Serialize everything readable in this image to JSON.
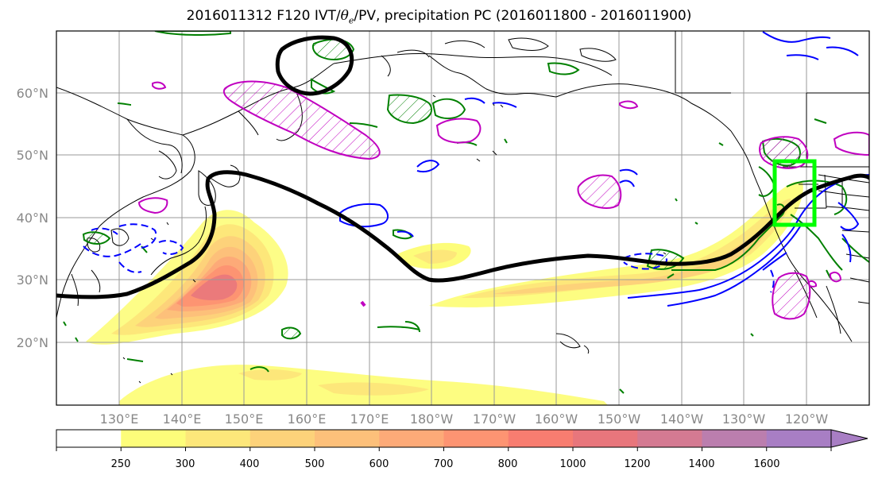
{
  "title": {
    "prefix": "2016011312 F120 IVT/",
    "theta_symbol": "θ",
    "theta_sub": "e",
    "suffix": "/PV, precipitation PC (2016011800 - 2016011900)"
  },
  "map": {
    "lat_labels": [
      "60°N",
      "50°N",
      "40°N",
      "30°N",
      "20°N"
    ],
    "lon_labels": [
      "130°E",
      "140°E",
      "150°E",
      "160°E",
      "170°E",
      "180°W",
      "170°W",
      "160°W",
      "150°W",
      "140°W",
      "130°W",
      "120°W"
    ]
  },
  "colorbar": {
    "ticks": [
      "250",
      "300",
      "400",
      "500",
      "600",
      "700",
      "800",
      "1000",
      "1200",
      "1400",
      "1600"
    ],
    "colors": [
      "#ffffff",
      "#fdfd7a",
      "#fde77a",
      "#fdd27a",
      "#fdc07a",
      "#fdaa78",
      "#fd9472",
      "#f87d70",
      "#e8767c",
      "#d47a92",
      "#bb7eae",
      "#a87ec4"
    ]
  },
  "colors": {
    "ivt_contour": "#000000",
    "theta_e_contour": "#0000ff",
    "pv_contour": "#008000",
    "precip_pc_contour": "#c000c0",
    "target_box": "#00ff00"
  }
}
